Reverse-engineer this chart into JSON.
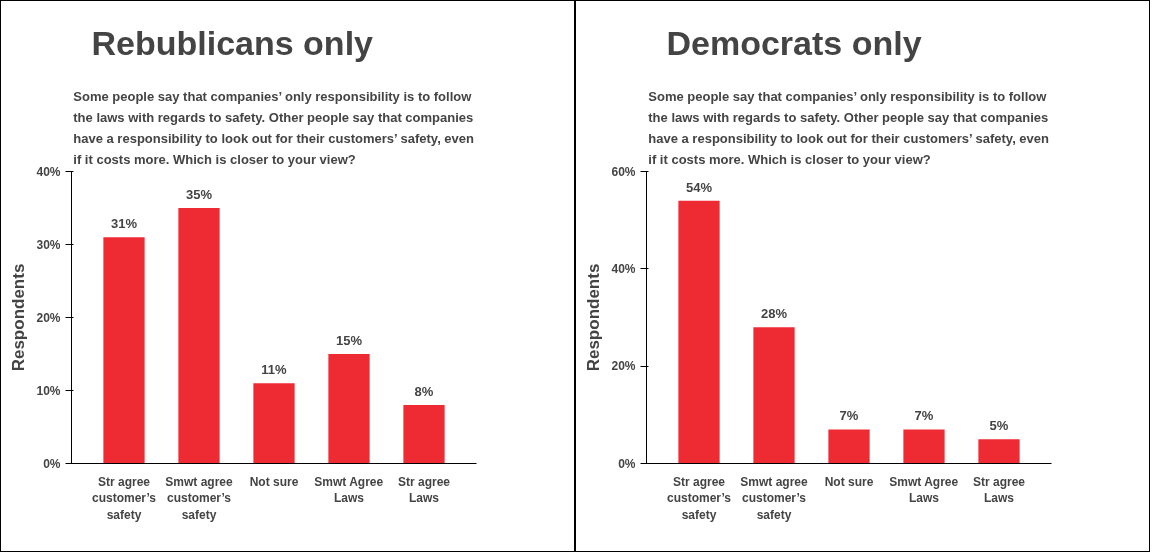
{
  "chart_data": [
    {
      "type": "bar",
      "title": "Rebublicans only",
      "subtitle": "Some people say that companies’ only responsibility is to follow\nthe laws with regards to safety. Other people say that companies\nhave a responsibility to look out for their customers’ safety, even\nif it costs more. Which is closer to your view?",
      "ylabel": "Respondents",
      "categories": [
        "Str agree customer’s safety",
        "Smwt agree customer’s safety",
        "Not sure",
        "Smwt Agree Laws",
        "Str agree Laws"
      ],
      "values": [
        31,
        35,
        11,
        15,
        8
      ],
      "color": "#ee2a33",
      "value_labels": [
        "31%",
        "35%",
        "11%",
        "15%",
        "8%"
      ],
      "ylim": [
        0,
        40
      ],
      "yticks": [
        {
          "value": 0,
          "label": "0%"
        },
        {
          "value": 10,
          "label": "10%"
        },
        {
          "value": 20,
          "label": "20%"
        },
        {
          "value": 30,
          "label": "30%"
        },
        {
          "value": 40,
          "label": "40%"
        }
      ],
      "grid": false
    },
    {
      "type": "bar",
      "title": "Democrats only",
      "subtitle": "Some people say that companies’ only responsibility is to follow\nthe laws with regards to safety. Other people say that companies\nhave a responsibility to look out for their customers’ safety, even\nif it costs more. Which is closer to your view?",
      "ylabel": "Respondents",
      "categories": [
        "Str agree customer’s safety",
        "Smwt agree customer’s safety",
        "Not sure",
        "Smwt Agree Laws",
        "Str agree Laws"
      ],
      "values": [
        54,
        28,
        7,
        7,
        5
      ],
      "color": "#ee2a33",
      "value_labels": [
        "54%",
        "28%",
        "7%",
        "7%",
        "5%"
      ],
      "ylim": [
        0,
        60
      ],
      "yticks": [
        {
          "value": 0,
          "label": "0%"
        },
        {
          "value": 20,
          "label": "20%"
        },
        {
          "value": 40,
          "label": "40%"
        },
        {
          "value": 60,
          "label": "60%"
        }
      ],
      "grid": false
    }
  ]
}
